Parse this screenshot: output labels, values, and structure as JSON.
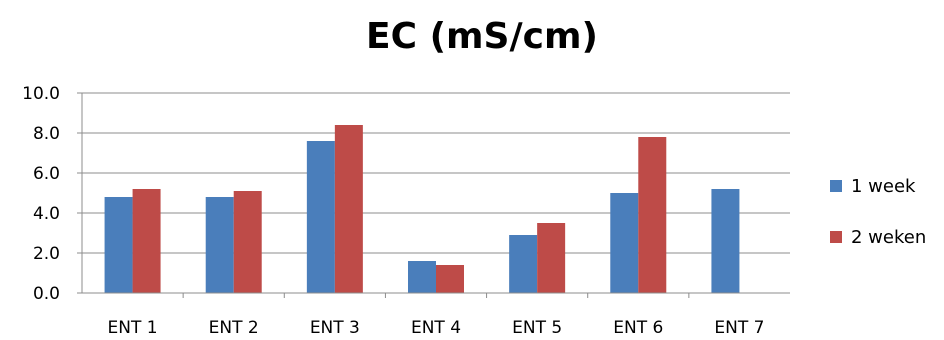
{
  "chart_data": {
    "type": "bar",
    "title": "EC (mS/cm)",
    "xlabel": "",
    "ylabel": "",
    "categories": [
      "ENT 1",
      "ENT 2",
      "ENT 3",
      "ENT 4",
      "ENT 5",
      "ENT 6",
      "ENT 7"
    ],
    "series": [
      {
        "name": "1 week",
        "color": "#4a7ebb",
        "values": [
          4.8,
          4.8,
          7.6,
          1.6,
          2.9,
          5.0,
          5.2
        ]
      },
      {
        "name": "2 weken",
        "color": "#be4b48",
        "values": [
          5.2,
          5.1,
          8.4,
          1.4,
          3.5,
          7.8,
          null
        ]
      }
    ],
    "ylim": [
      0,
      10
    ],
    "yticks": [
      "0.0",
      "2.0",
      "4.0",
      "6.0",
      "8.0",
      "10.0"
    ],
    "grid": true,
    "legend_position": "right"
  }
}
